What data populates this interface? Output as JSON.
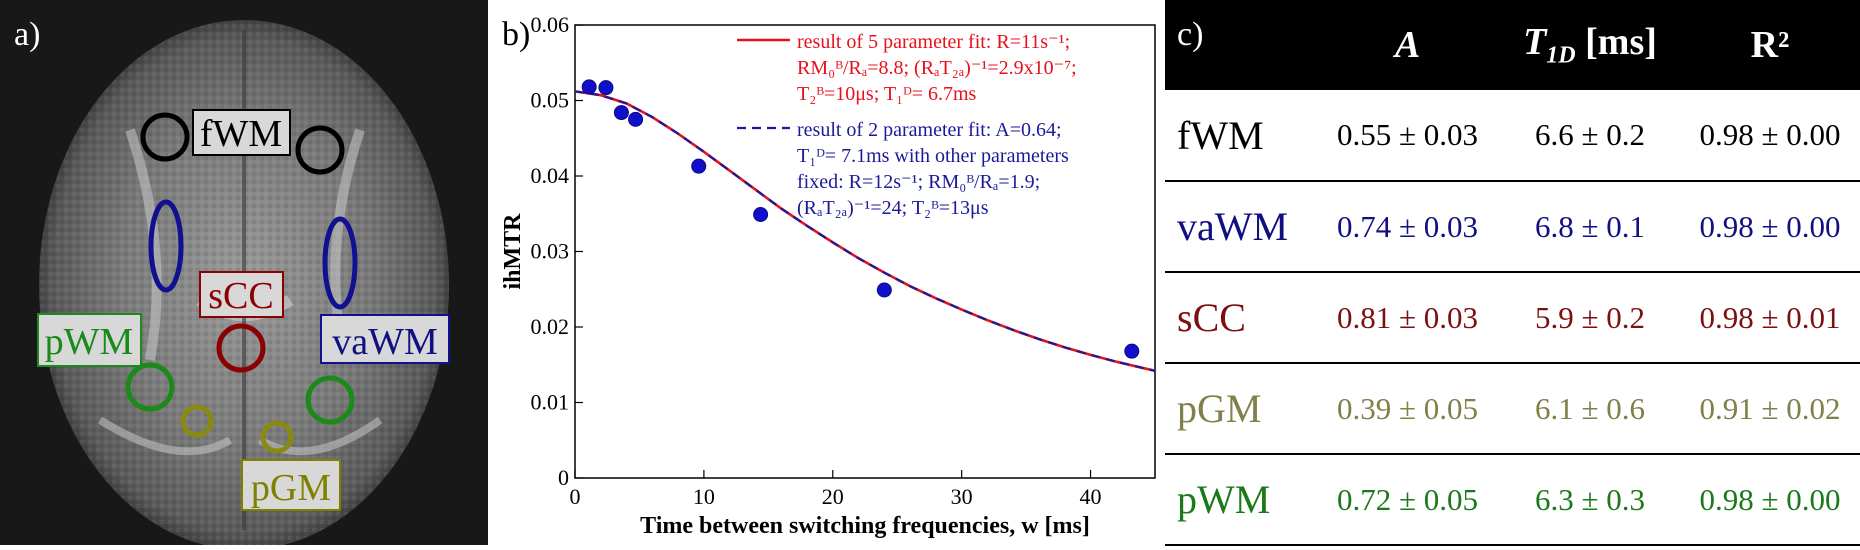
{
  "panel_a": {
    "label": "a)",
    "regions": [
      {
        "name": "fWM",
        "color": "#000000"
      },
      {
        "name": "sCC",
        "color": "#8b0000"
      },
      {
        "name": "pWM",
        "color": "#1a8a1a"
      },
      {
        "name": "vaWM",
        "color": "#101080"
      },
      {
        "name": "pGM",
        "color": "#808000"
      }
    ]
  },
  "chart_data": {
    "type": "scatter",
    "panel_label": "b)",
    "xlabel": "Time between switching frequencies, w [ms]",
    "ylabel": "ihMTR",
    "xlim": [
      0,
      45
    ],
    "ylim": [
      0,
      0.06
    ],
    "xticks": [
      "0",
      "10",
      "20",
      "30",
      "40"
    ],
    "yticks": [
      "0",
      "0.01",
      "0.02",
      "0.03",
      "0.04",
      "0.05",
      "0.06"
    ],
    "points": {
      "x": [
        1.1,
        2.4,
        3.6,
        4.7,
        9.6,
        14.4,
        24.0,
        43.2
      ],
      "y": [
        0.0518,
        0.0517,
        0.0484,
        0.0475,
        0.0413,
        0.0349,
        0.0249,
        0.0168
      ]
    },
    "series": [
      {
        "name": "result of 5 parameter fit",
        "color": "#e8101a",
        "style": "solid",
        "x": [
          0,
          2,
          4,
          6,
          8,
          10,
          12,
          14,
          16,
          18,
          20,
          22,
          24,
          26,
          28,
          30,
          32,
          34,
          36,
          38,
          40,
          42,
          44,
          45
        ],
        "y": [
          0.0512,
          0.0507,
          0.0496,
          0.0478,
          0.0456,
          0.0432,
          0.0407,
          0.0382,
          0.0357,
          0.0334,
          0.0312,
          0.0291,
          0.0272,
          0.0254,
          0.0238,
          0.0223,
          0.0209,
          0.0196,
          0.0184,
          0.0173,
          0.0163,
          0.0154,
          0.0146,
          0.0142
        ]
      },
      {
        "name": "result of 2 parameter fit",
        "color": "#1a1a9a",
        "style": "dashed",
        "x": [
          0,
          2,
          4,
          6,
          8,
          10,
          12,
          14,
          16,
          18,
          20,
          22,
          24,
          26,
          28,
          30,
          32,
          34,
          36,
          38,
          40,
          42,
          44,
          45
        ],
        "y": [
          0.0512,
          0.0507,
          0.0496,
          0.0478,
          0.0456,
          0.0432,
          0.0407,
          0.0382,
          0.0357,
          0.0334,
          0.0312,
          0.0291,
          0.0272,
          0.0254,
          0.0238,
          0.0223,
          0.0209,
          0.0196,
          0.0184,
          0.0173,
          0.0163,
          0.0154,
          0.0146,
          0.0142
        ]
      }
    ],
    "point_color": "#1010cc",
    "legend": {
      "placement": "top-right",
      "entry1_lines": [
        "result of 5 parameter fit: R=11s⁻¹;",
        "RM₀ᴮ/Rₐ=8.8; (RₐT₂ₐ)⁻¹=2.9x10⁻⁷;",
        "T₂ᴮ=10μs; T₁ᴰ= 6.7ms"
      ],
      "entry2_lines": [
        "result of 2 parameter fit: A=0.64;",
        "T₁ᴰ= 7.1ms with other parameters",
        "fixed: R=12s⁻¹; RM₀ᴮ/Rₐ=1.9;",
        "(RₐT₂ₐ)⁻¹=24; T₂ᴮ=13μs"
      ]
    }
  },
  "panel_c": {
    "label": "c)",
    "headers": [
      "A",
      "T1D [ms]",
      "R²"
    ],
    "header_t_main": "T",
    "header_t_sub": "1D",
    "header_t_unit": " [ms]",
    "rows": [
      {
        "name": "fWM",
        "color": "#000000",
        "A": "0.55 ± 0.03",
        "T1D": "6.6 ± 0.2",
        "R2": "0.98 ± 0.00"
      },
      {
        "name": "vaWM",
        "color": "#101080",
        "A": "0.74 ± 0.03",
        "T1D": "6.8 ± 0.1",
        "R2": "0.98 ± 0.00"
      },
      {
        "name": "sCC",
        "color": "#7a1010",
        "A": "0.81 ± 0.03",
        "T1D": "5.9 ± 0.2",
        "R2": "0.98 ± 0.01"
      },
      {
        "name": "pGM",
        "color": "#80804a",
        "A": "0.39 ± 0.05",
        "T1D": "6.1 ± 0.6",
        "R2": "0.91 ± 0.02"
      },
      {
        "name": "pWM",
        "color": "#1a7a1a",
        "A": "0.72 ± 0.05",
        "T1D": "6.3 ± 0.3",
        "R2": "0.98 ± 0.00"
      }
    ]
  }
}
